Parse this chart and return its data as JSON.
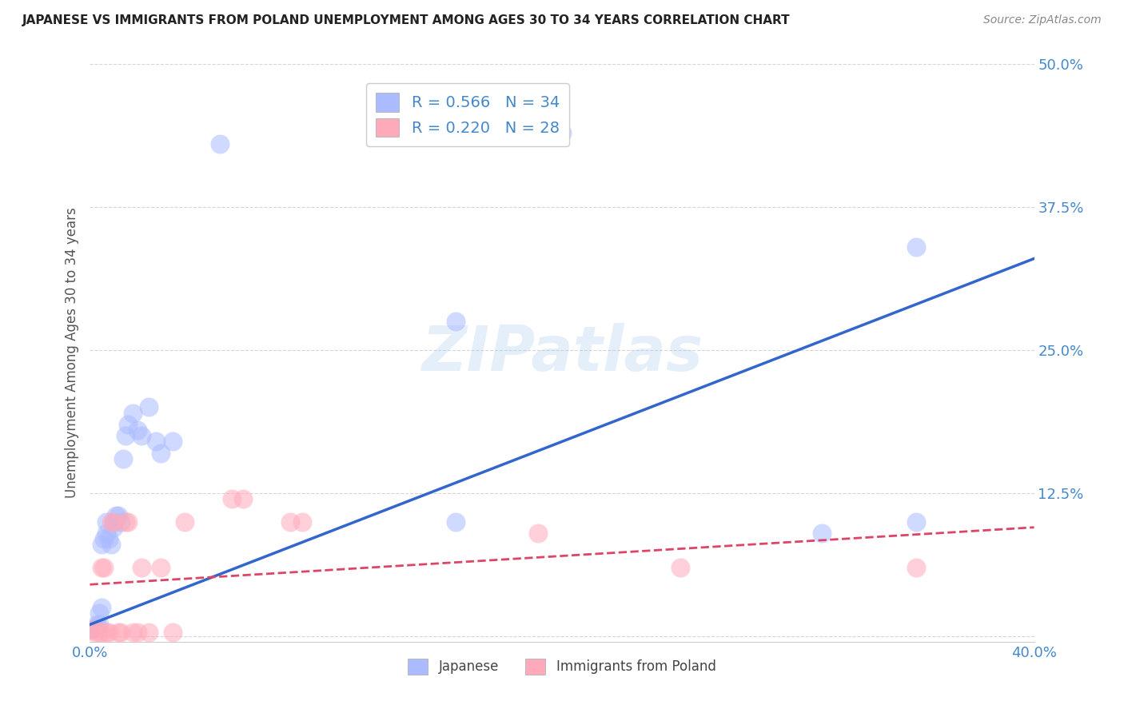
{
  "title": "JAPANESE VS IMMIGRANTS FROM POLAND UNEMPLOYMENT AMONG AGES 30 TO 34 YEARS CORRELATION CHART",
  "source": "Source: ZipAtlas.com",
  "ylabel": "Unemployment Among Ages 30 to 34 years",
  "xlim": [
    0.0,
    0.4
  ],
  "ylim": [
    -0.005,
    0.5
  ],
  "yticks": [
    0.0,
    0.125,
    0.25,
    0.375,
    0.5
  ],
  "ytick_labels": [
    "",
    "12.5%",
    "25.0%",
    "37.5%",
    "50.0%"
  ],
  "xticks": [
    0.0,
    0.08,
    0.16,
    0.24,
    0.32,
    0.4
  ],
  "xtick_labels": [
    "0.0%",
    "",
    "",
    "",
    "",
    "40.0%"
  ],
  "watermark": "ZIPatlas",
  "legend_R1": "R = 0.566",
  "legend_N1": "N = 34",
  "legend_R2": "R = 0.220",
  "legend_N2": "N = 28",
  "color_japanese": "#aabbff",
  "color_poland": "#ffaabb",
  "color_japanese_line": "#3366cc",
  "color_poland_line": "#dd4466",
  "color_tick": "#4488cc",
  "japanese_x": [
    0.001,
    0.002,
    0.003,
    0.004,
    0.004,
    0.005,
    0.005,
    0.006,
    0.007,
    0.007,
    0.008,
    0.009,
    0.01,
    0.01,
    0.011,
    0.012,
    0.013,
    0.014,
    0.015,
    0.016,
    0.018,
    0.02,
    0.022,
    0.025,
    0.028,
    0.03,
    0.035,
    0.055,
    0.155,
    0.155,
    0.2,
    0.31,
    0.35,
    0.35
  ],
  "japanese_y": [
    0.005,
    0.007,
    0.01,
    0.01,
    0.02,
    0.025,
    0.08,
    0.085,
    0.09,
    0.1,
    0.085,
    0.08,
    0.095,
    0.1,
    0.105,
    0.105,
    0.1,
    0.155,
    0.175,
    0.185,
    0.195,
    0.18,
    0.175,
    0.2,
    0.17,
    0.16,
    0.17,
    0.43,
    0.275,
    0.1,
    0.44,
    0.09,
    0.1,
    0.34
  ],
  "poland_x": [
    0.001,
    0.002,
    0.004,
    0.005,
    0.005,
    0.006,
    0.007,
    0.008,
    0.009,
    0.01,
    0.012,
    0.013,
    0.015,
    0.016,
    0.018,
    0.02,
    0.022,
    0.025,
    0.03,
    0.035,
    0.04,
    0.06,
    0.065,
    0.085,
    0.09,
    0.19,
    0.25,
    0.35
  ],
  "poland_y": [
    0.005,
    0.003,
    0.003,
    0.003,
    0.06,
    0.06,
    0.003,
    0.003,
    0.1,
    0.1,
    0.003,
    0.003,
    0.1,
    0.1,
    0.003,
    0.003,
    0.06,
    0.003,
    0.06,
    0.003,
    0.1,
    0.12,
    0.12,
    0.1,
    0.1,
    0.09,
    0.06,
    0.06
  ],
  "jline_x0": 0.0,
  "jline_x1": 0.4,
  "jline_y0": 0.01,
  "jline_y1": 0.33,
  "pline_x0": 0.0,
  "pline_x1": 0.4,
  "pline_y0": 0.045,
  "pline_y1": 0.095,
  "background_color": "#ffffff",
  "grid_color": "#cccccc"
}
